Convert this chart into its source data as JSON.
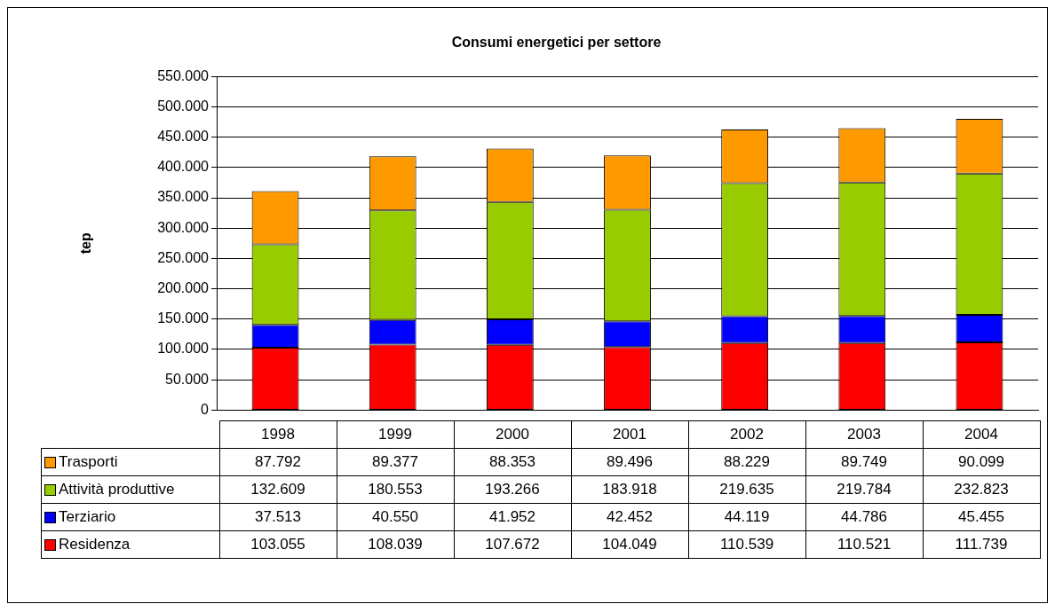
{
  "chart_data": {
    "type": "bar",
    "title": "Consumi energetici per settore",
    "ylabel": "tep",
    "categories": [
      "1998",
      "1999",
      "2000",
      "2001",
      "2002",
      "2003",
      "2004"
    ],
    "stacked": true,
    "grid": "y",
    "legend": "bottom",
    "ylim": [
      0,
      550000
    ],
    "yticks": [
      0,
      {
        "value": 50000,
        "label": "50.000"
      },
      {
        "value": 100000,
        "label": "100.000"
      },
      {
        "value": 150000,
        "label": "150.000"
      },
      {
        "value": 200000,
        "label": "200.000"
      },
      {
        "value": 250000,
        "label": "250.000"
      },
      {
        "value": 300000,
        "label": "300.000"
      },
      {
        "value": 350000,
        "label": "350.000"
      },
      {
        "value": 400000,
        "label": "400.000"
      },
      {
        "value": 450000,
        "label": "450.000"
      },
      {
        "value": 500000,
        "label": "500.000"
      },
      {
        "value": 550000,
        "label": "550.000"
      }
    ],
    "series": [
      {
        "name": "Residenza",
        "color": "#ff0000",
        "values": [
          103055,
          108039,
          107672,
          104049,
          110539,
          110521,
          111739
        ],
        "value_labels": [
          "103.055",
          "108.039",
          "107.672",
          "104.049",
          "110.539",
          "110.521",
          "111.739"
        ]
      },
      {
        "name": "Terziario",
        "color": "#0000ff",
        "values": [
          37513,
          40550,
          41952,
          42452,
          44119,
          44786,
          45455
        ],
        "value_labels": [
          "37.513",
          "40.550",
          "41.952",
          "42.452",
          "44.119",
          "44.786",
          "45.455"
        ]
      },
      {
        "name": "Attività produttive",
        "color": "#99cc00",
        "values": [
          132609,
          180553,
          193266,
          183918,
          219635,
          219784,
          232823
        ],
        "value_labels": [
          "132.609",
          "180.553",
          "193.266",
          "183.918",
          "219.635",
          "219.784",
          "232.823"
        ]
      },
      {
        "name": "Trasporti",
        "color": "#ff9900",
        "values": [
          87792,
          89377,
          88353,
          89496,
          88229,
          89749,
          90099
        ],
        "value_labels": [
          "87.792",
          "89.377",
          "88.353",
          "89.496",
          "88.229",
          "89.749",
          "90.099"
        ]
      }
    ]
  }
}
